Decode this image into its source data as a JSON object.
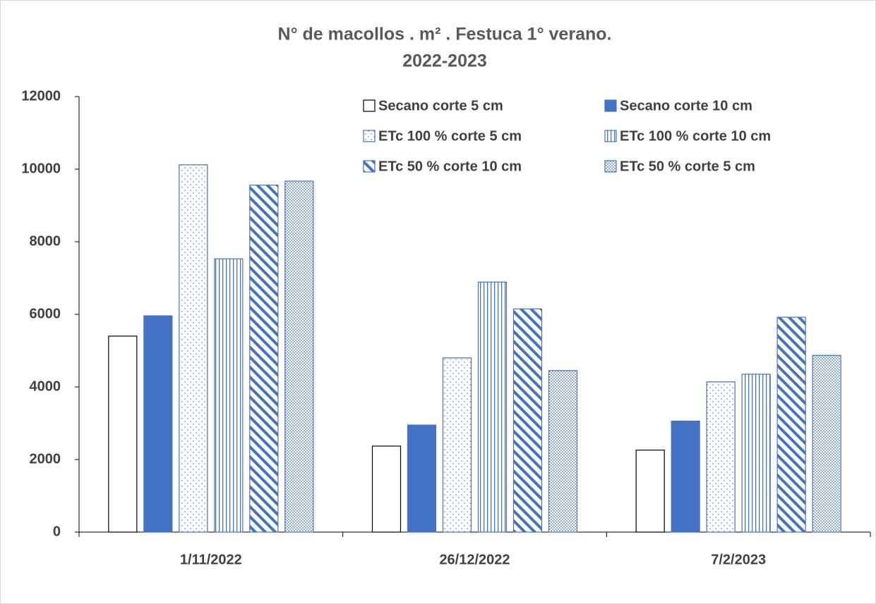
{
  "chart_data": {
    "type": "bar",
    "title": [
      "N° de macollos . m² . Festuca  1° verano.",
      "2022-2023"
    ],
    "categories": [
      "1/11/2022",
      "26/12/2022",
      "7/2/2023"
    ],
    "series": [
      {
        "name": "Secano corte 5 cm",
        "color": "#000000",
        "pattern": "outline",
        "values": [
          5400,
          2370,
          2260
        ]
      },
      {
        "name": "Secano corte 10 cm",
        "color": "#4472c4",
        "pattern": "solid",
        "values": [
          5960,
          2950,
          3060
        ]
      },
      {
        "name": "ETc 100 % corte 5 cm",
        "color": "#4472c4",
        "pattern": "dots",
        "values": [
          10120,
          4800,
          4140
        ]
      },
      {
        "name": "ETc 100 % corte 10 cm",
        "color": "#4472c4",
        "pattern": "vertical",
        "values": [
          7530,
          6890,
          4350
        ]
      },
      {
        "name": "ETc 50 % corte 10 cm",
        "color": "#4472c4",
        "pattern": "diagonal",
        "values": [
          9560,
          6150,
          5920
        ]
      },
      {
        "name": "ETc 50 % corte 5 cm",
        "color": "#4472c4",
        "pattern": "dense-dots",
        "values": [
          9670,
          4450,
          4870
        ]
      }
    ],
    "ylim": [
      0,
      12000
    ],
    "yticks": [
      0,
      2000,
      4000,
      6000,
      8000,
      10000,
      12000
    ],
    "grid": false,
    "legend": "upper right"
  }
}
